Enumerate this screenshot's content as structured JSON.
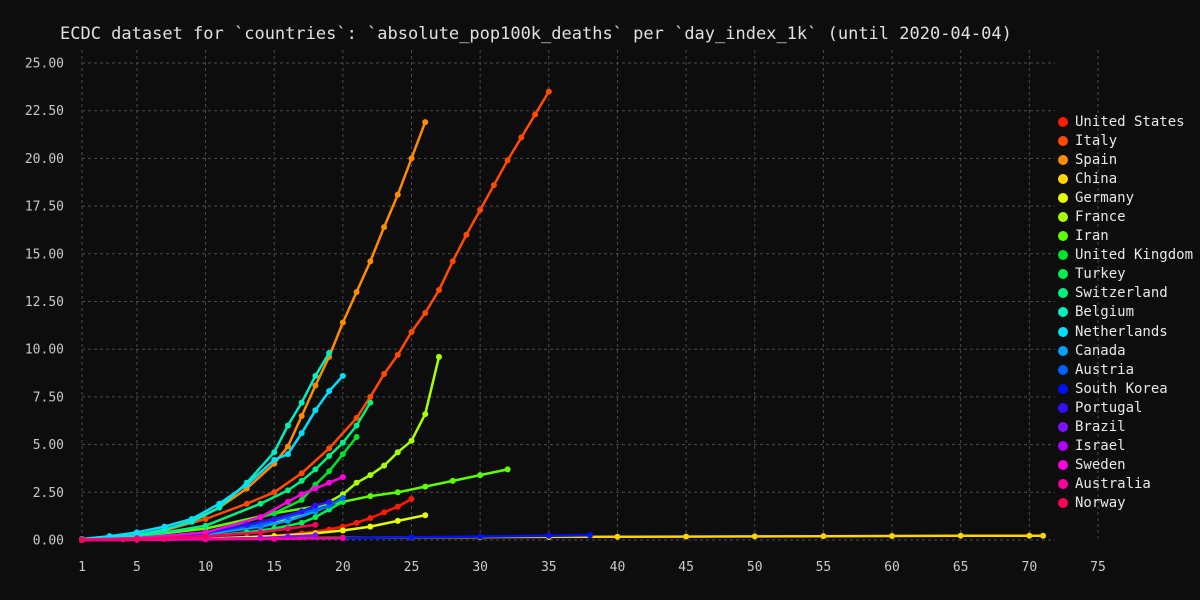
{
  "chart_data": {
    "type": "scatter",
    "title": "ECDC dataset for `countries`: `absolute_pop100k_deaths` per `day_index_1k` (until 2020-04-04)",
    "xlabel": "",
    "ylabel": "",
    "xlim": [
      1,
      75
    ],
    "ylim": [
      0,
      25
    ],
    "x_ticks": [
      1,
      5,
      10,
      15,
      20,
      25,
      30,
      35,
      40,
      45,
      50,
      55,
      60,
      65,
      70,
      75
    ],
    "y_ticks": [
      "0.00",
      "2.50",
      "5.00",
      "7.50",
      "10.00",
      "12.50",
      "15.00",
      "17.50",
      "20.00",
      "22.50",
      "25.00"
    ],
    "grid": true,
    "legend_position": "right",
    "series": [
      {
        "name": "United States",
        "color": "#ff1a00",
        "x": [
          1,
          4,
          7,
          10,
          13,
          15,
          17,
          19,
          20,
          21,
          22,
          23,
          24,
          25
        ],
        "y": [
          0.02,
          0.03,
          0.05,
          0.08,
          0.15,
          0.22,
          0.35,
          0.55,
          0.7,
          0.9,
          1.15,
          1.45,
          1.75,
          2.15
        ]
      },
      {
        "name": "Italy",
        "color": "#ff4a00",
        "x": [
          1,
          4,
          7,
          10,
          13,
          15,
          17,
          19,
          21,
          22,
          23,
          24,
          25,
          26,
          27,
          28,
          29,
          30,
          31,
          32,
          33,
          34,
          35
        ],
        "y": [
          0.03,
          0.15,
          0.5,
          1.1,
          1.9,
          2.5,
          3.5,
          4.8,
          6.4,
          7.5,
          8.7,
          9.7,
          10.9,
          11.9,
          13.1,
          14.6,
          16.0,
          17.3,
          18.6,
          19.9,
          21.1,
          22.3,
          23.5
        ]
      },
      {
        "name": "Spain",
        "color": "#ff8c00",
        "x": [
          1,
          3,
          5,
          7,
          9,
          11,
          13,
          15,
          16,
          17,
          18,
          19,
          20,
          21,
          22,
          23,
          24,
          25,
          26
        ],
        "y": [
          0.02,
          0.1,
          0.25,
          0.5,
          1.0,
          1.7,
          2.7,
          4.0,
          4.9,
          6.5,
          8.1,
          9.6,
          11.4,
          13.0,
          14.6,
          16.4,
          18.1,
          20.0,
          21.9
        ]
      },
      {
        "name": "China",
        "color": "#ffd400",
        "x": [
          1,
          5,
          10,
          15,
          20,
          25,
          30,
          35,
          40,
          45,
          50,
          55,
          60,
          65,
          70,
          71
        ],
        "y": [
          0.0,
          0.03,
          0.06,
          0.09,
          0.11,
          0.13,
          0.15,
          0.16,
          0.17,
          0.18,
          0.19,
          0.2,
          0.21,
          0.22,
          0.22,
          0.22
        ]
      },
      {
        "name": "Germany",
        "color": "#e6ff00",
        "x": [
          1,
          5,
          10,
          15,
          18,
          20,
          22,
          24,
          26
        ],
        "y": [
          0.0,
          0.02,
          0.07,
          0.2,
          0.35,
          0.5,
          0.7,
          1.0,
          1.3
        ]
      },
      {
        "name": "France",
        "color": "#a8ff00",
        "x": [
          1,
          5,
          10,
          15,
          18,
          20,
          21,
          22,
          23,
          24,
          25,
          26,
          27
        ],
        "y": [
          0.0,
          0.08,
          0.3,
          0.9,
          1.6,
          2.4,
          3.0,
          3.4,
          3.9,
          4.6,
          5.2,
          6.6,
          9.6
        ]
      },
      {
        "name": "Iran",
        "color": "#5cff00",
        "x": [
          1,
          5,
          10,
          15,
          20,
          22,
          24,
          26,
          28,
          30,
          32
        ],
        "y": [
          0.03,
          0.2,
          0.6,
          1.4,
          2.0,
          2.3,
          2.5,
          2.8,
          3.1,
          3.4,
          3.7
        ]
      },
      {
        "name": "United Kingdom",
        "color": "#00e32b",
        "x": [
          1,
          5,
          10,
          15,
          17,
          18,
          19,
          20,
          21
        ],
        "y": [
          0.01,
          0.05,
          0.35,
          1.4,
          2.1,
          2.9,
          3.6,
          4.5,
          5.4
        ]
      },
      {
        "name": "Turkey",
        "color": "#00f050",
        "x": [
          1,
          5,
          10,
          13,
          15,
          17,
          18,
          19,
          20
        ],
        "y": [
          0.0,
          0.04,
          0.2,
          0.4,
          0.6,
          0.9,
          1.2,
          1.6,
          2.0
        ]
      },
      {
        "name": "Switzerland",
        "color": "#00f082",
        "x": [
          1,
          5,
          10,
          14,
          16,
          17,
          18,
          19,
          20,
          21,
          22
        ],
        "y": [
          0.02,
          0.15,
          0.75,
          1.9,
          2.6,
          3.1,
          3.7,
          4.4,
          5.1,
          6.0,
          7.2
        ]
      },
      {
        "name": "Belgium",
        "color": "#00f0c0",
        "x": [
          1,
          3,
          5,
          7,
          9,
          11,
          13,
          15,
          16,
          17,
          18,
          19
        ],
        "y": [
          0.02,
          0.08,
          0.25,
          0.55,
          0.95,
          1.7,
          3.0,
          4.6,
          6.0,
          7.2,
          8.6,
          9.8
        ]
      },
      {
        "name": "Netherlands",
        "color": "#00e0ff",
        "x": [
          1,
          3,
          5,
          7,
          9,
          11,
          13,
          15,
          16,
          17,
          18,
          19,
          20
        ],
        "y": [
          0.05,
          0.2,
          0.4,
          0.7,
          1.1,
          1.9,
          2.9,
          4.2,
          4.5,
          5.6,
          6.8,
          7.8,
          8.6
        ]
      },
      {
        "name": "Canada",
        "color": "#00a0ff",
        "x": [
          1,
          5,
          10,
          14,
          16,
          18,
          19
        ],
        "y": [
          0.02,
          0.1,
          0.3,
          0.7,
          1.0,
          1.5,
          1.8
        ]
      },
      {
        "name": "Austria",
        "color": "#0060ff",
        "x": [
          1,
          5,
          10,
          14,
          16,
          18,
          19,
          20
        ],
        "y": [
          0.01,
          0.1,
          0.4,
          0.8,
          1.2,
          1.6,
          1.8,
          2.2
        ]
      },
      {
        "name": "South Korea",
        "color": "#0010ff",
        "x": [
          1,
          5,
          10,
          15,
          20,
          25,
          30,
          35,
          38
        ],
        "y": [
          0.0,
          0.01,
          0.03,
          0.06,
          0.1,
          0.14,
          0.18,
          0.22,
          0.25
        ]
      },
      {
        "name": "Portugal",
        "color": "#3010ff",
        "x": [
          1,
          5,
          10,
          13,
          15,
          17,
          18,
          19
        ],
        "y": [
          0.0,
          0.05,
          0.35,
          0.8,
          1.1,
          1.5,
          1.8,
          2.0
        ]
      },
      {
        "name": "Brazil",
        "color": "#8010ff",
        "x": [
          1,
          5,
          10,
          14,
          16,
          18
        ],
        "y": [
          0.0,
          0.02,
          0.05,
          0.1,
          0.18,
          0.25
        ]
      },
      {
        "name": "Israel",
        "color": "#b000ff",
        "x": [
          1,
          5,
          10,
          14
        ],
        "y": [
          0.0,
          0.01,
          0.05,
          0.1
        ]
      },
      {
        "name": "Sweden",
        "color": "#ff00e0",
        "x": [
          1,
          5,
          10,
          14,
          16,
          17,
          18,
          19,
          20
        ],
        "y": [
          0.02,
          0.1,
          0.4,
          1.2,
          2.0,
          2.4,
          2.7,
          3.0,
          3.3
        ]
      },
      {
        "name": "Australia",
        "color": "#ff00a0",
        "x": [
          1,
          5,
          10,
          15,
          20
        ],
        "y": [
          0.0,
          0.01,
          0.03,
          0.06,
          0.1
        ]
      },
      {
        "name": "Norway",
        "color": "#ff0055",
        "x": [
          1,
          5,
          10,
          14,
          16,
          18
        ],
        "y": [
          0.0,
          0.05,
          0.2,
          0.4,
          0.6,
          0.8
        ]
      }
    ]
  }
}
